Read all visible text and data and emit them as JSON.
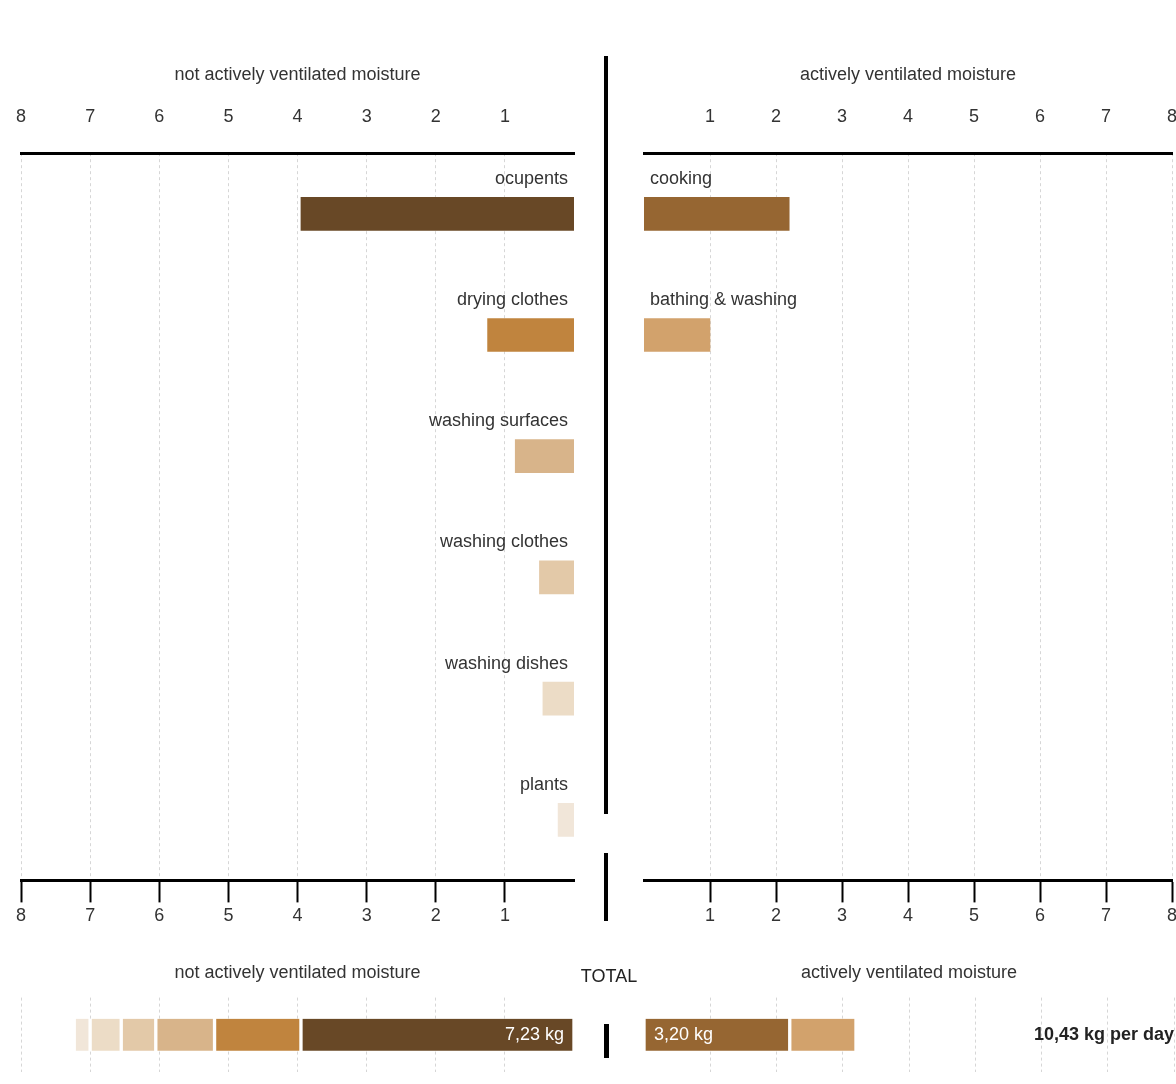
{
  "chart_data": [
    {
      "type": "bar",
      "orientation": "horizontal",
      "x2label": "not actively ventilated moisture",
      "categories": [
        "ocupents",
        "drying clothes",
        "washing surfaces",
        "washing clothes",
        "washing dishes",
        "plants"
      ],
      "values": [
        3.95,
        1.25,
        0.85,
        0.5,
        0.45,
        0.23
      ],
      "colors": [
        "#684826",
        "#c0843e",
        "#d8b48a",
        "#e3c9a8",
        "#ecdcc6",
        "#f1e6d9"
      ],
      "xlim": [
        8,
        0
      ],
      "xticks": [
        8,
        7,
        6,
        5,
        4,
        3,
        2,
        1
      ],
      "x2lim": [
        8,
        0
      ],
      "x2ticks": [
        8,
        7,
        6,
        5,
        4,
        3,
        2,
        1
      ],
      "grid": "x"
    },
    {
      "type": "bar",
      "orientation": "horizontal",
      "x2label": "actively ventilated moisture",
      "categories": [
        "cooking",
        "bathing & washing",
        null,
        null,
        null,
        null
      ],
      "values": [
        2.2,
        1.0,
        null,
        null,
        null,
        null
      ],
      "colors": [
        "#966632",
        "#d2a26c",
        "#d2a26c",
        "#d2a26c",
        "#d2a26c",
        "#d2a26c"
      ],
      "xlim": [
        0,
        8
      ],
      "xticks": [
        1,
        2,
        3,
        4,
        5,
        6,
        7,
        8
      ],
      "x2lim": [
        0,
        8
      ],
      "x2ticks": [
        1,
        2,
        3,
        4,
        5,
        6,
        7,
        8
      ],
      "grid": "x"
    },
    {
      "type": "bar",
      "orientation": "horizontal",
      "stacked": true,
      "title": "not actively ventilated moisture",
      "annotations": [
        "TOTAL"
      ],
      "categories": [
        null
      ],
      "series": [
        {
          "color": "#684826",
          "values": [
            3.95
          ]
        },
        {
          "color": "#c0843e",
          "values": [
            1.25
          ]
        },
        {
          "color": "#d8b48a",
          "values": [
            0.85
          ]
        },
        {
          "color": "#e3c9a8",
          "values": [
            0.5
          ]
        },
        {
          "color": "#ecdcc6",
          "values": [
            0.45
          ]
        },
        {
          "color": "#f1e6d9",
          "values": [
            0.23
          ]
        }
      ],
      "totals": [
        "7,23 kg"
      ],
      "xlim": [
        8,
        0
      ],
      "xticks": [
        8,
        7,
        6,
        5,
        4,
        3,
        2,
        1
      ],
      "tick_labels": false,
      "grid": "x"
    },
    {
      "type": "bar",
      "orientation": "horizontal",
      "stacked": true,
      "title": "actively ventilated moisture",
      "annotations": [
        "10,43 kg per day"
      ],
      "categories": [
        null
      ],
      "series": [
        {
          "color": "#966632",
          "values": [
            2.2
          ]
        },
        {
          "color": "#d2a26c",
          "values": [
            1.0
          ]
        }
      ],
      "totals": [
        "3,20 kg"
      ],
      "xlim": [
        0,
        8
      ],
      "xticks": [
        1,
        2,
        3,
        4,
        5,
        6,
        7,
        8
      ],
      "tick_labels": false,
      "grid": "x"
    }
  ]
}
